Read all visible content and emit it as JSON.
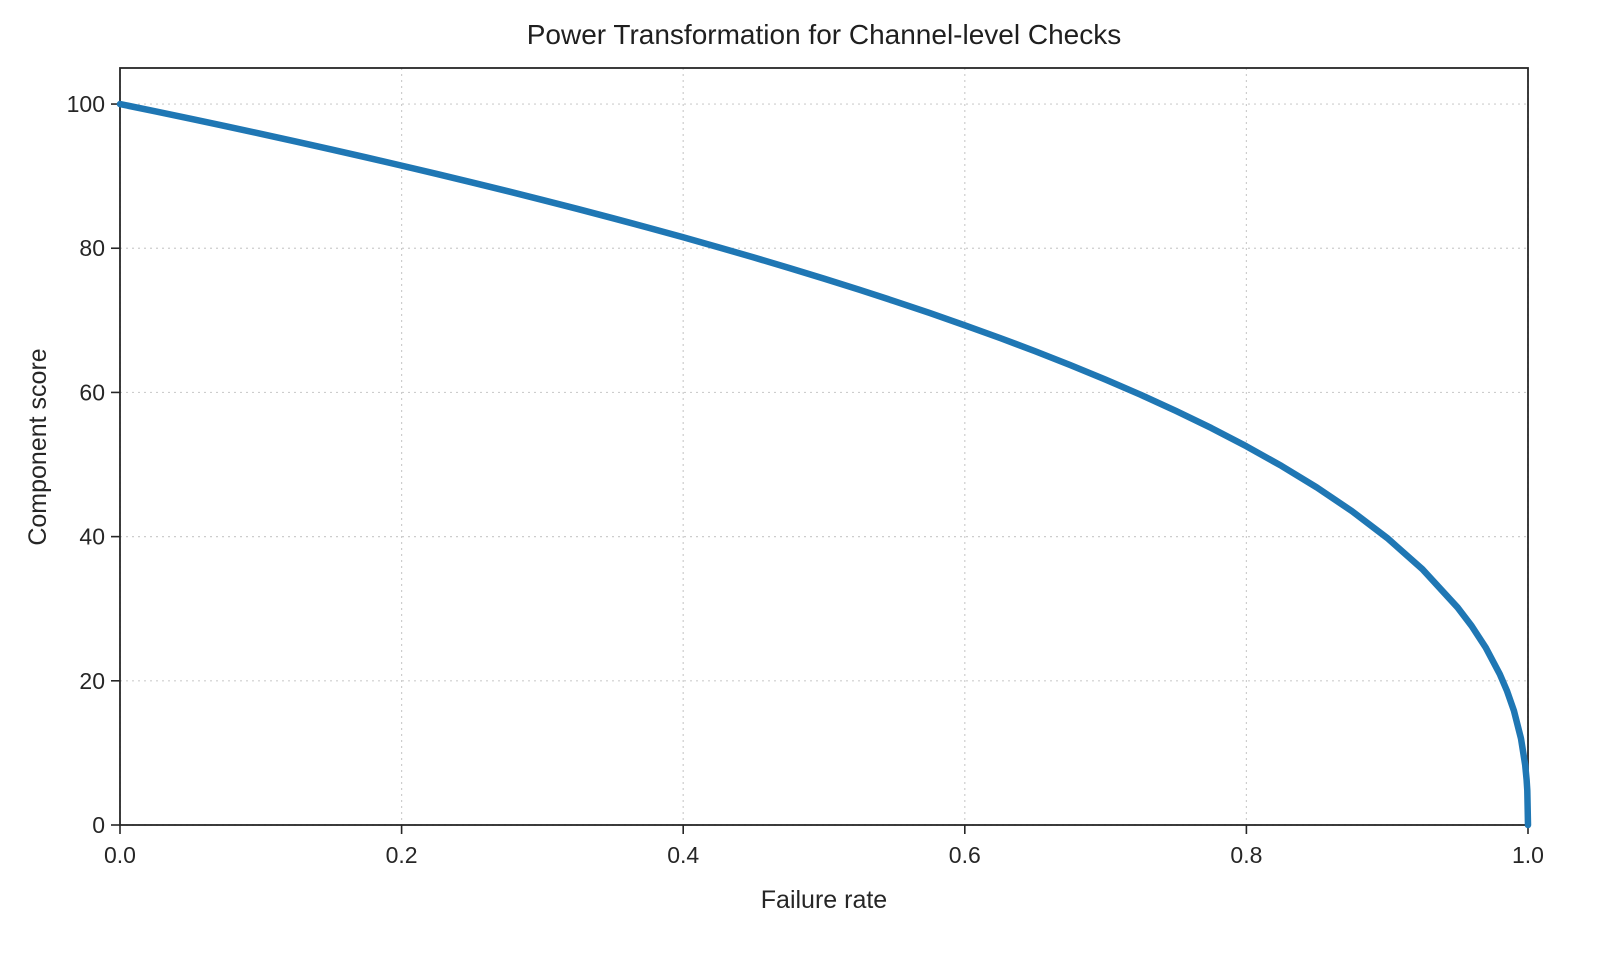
{
  "figure": {
    "background": "#ffffff",
    "text_color": "#262626",
    "grid_color": "#cdcdcd",
    "spine_color": "#262626"
  },
  "chart_data": {
    "type": "line",
    "title": "Power Transformation for Channel-level Checks",
    "xlabel": "Failure rate",
    "ylabel": "Component score",
    "xlim": [
      0.0,
      1.0
    ],
    "ylim": [
      0,
      105
    ],
    "grid": true,
    "grid_style": "dotted",
    "legend": "none",
    "line_color": "#1f77b4",
    "line_width": 6.5,
    "x_tick_values": [
      0.0,
      0.2,
      0.4,
      0.6,
      0.8,
      1.0
    ],
    "x_tick_labels": [
      "0.0",
      "0.2",
      "0.4",
      "0.6",
      "0.8",
      "1.0"
    ],
    "y_tick_values": [
      0,
      20,
      40,
      60,
      80,
      100
    ],
    "y_tick_labels": [
      "0",
      "20",
      "40",
      "60",
      "80",
      "100"
    ],
    "series": [
      {
        "name": "Component score",
        "x": [
          0,
          0.025,
          0.05,
          0.075,
          0.1,
          0.125,
          0.15,
          0.175,
          0.2,
          0.225,
          0.25,
          0.275,
          0.3,
          0.325,
          0.35,
          0.375,
          0.4,
          0.425,
          0.45,
          0.475,
          0.5,
          0.525,
          0.55,
          0.575,
          0.6,
          0.625,
          0.65,
          0.675,
          0.7,
          0.725,
          0.75,
          0.775,
          0.8,
          0.825,
          0.85,
          0.875,
          0.9,
          0.925,
          0.95,
          0.96,
          0.97,
          0.98,
          0.985,
          0.99,
          0.995,
          0.998,
          0.999,
          0.9995,
          1.0
        ],
        "y": [
          100,
          98.99,
          97.97,
          96.93,
          95.87,
          94.8,
          93.71,
          92.59,
          91.46,
          90.31,
          89.13,
          87.93,
          86.7,
          85.45,
          84.17,
          82.86,
          81.52,
          80.14,
          78.73,
          77.28,
          75.79,
          74.25,
          72.66,
          71.02,
          69.31,
          67.55,
          65.71,
          63.79,
          61.78,
          59.67,
          57.43,
          55.07,
          52.53,
          49.8,
          46.82,
          43.53,
          39.81,
          35.48,
          30.17,
          27.6,
          24.6,
          20.91,
          18.64,
          15.85,
          12.01,
          8.33,
          6.31,
          4.78,
          0
        ]
      }
    ]
  }
}
